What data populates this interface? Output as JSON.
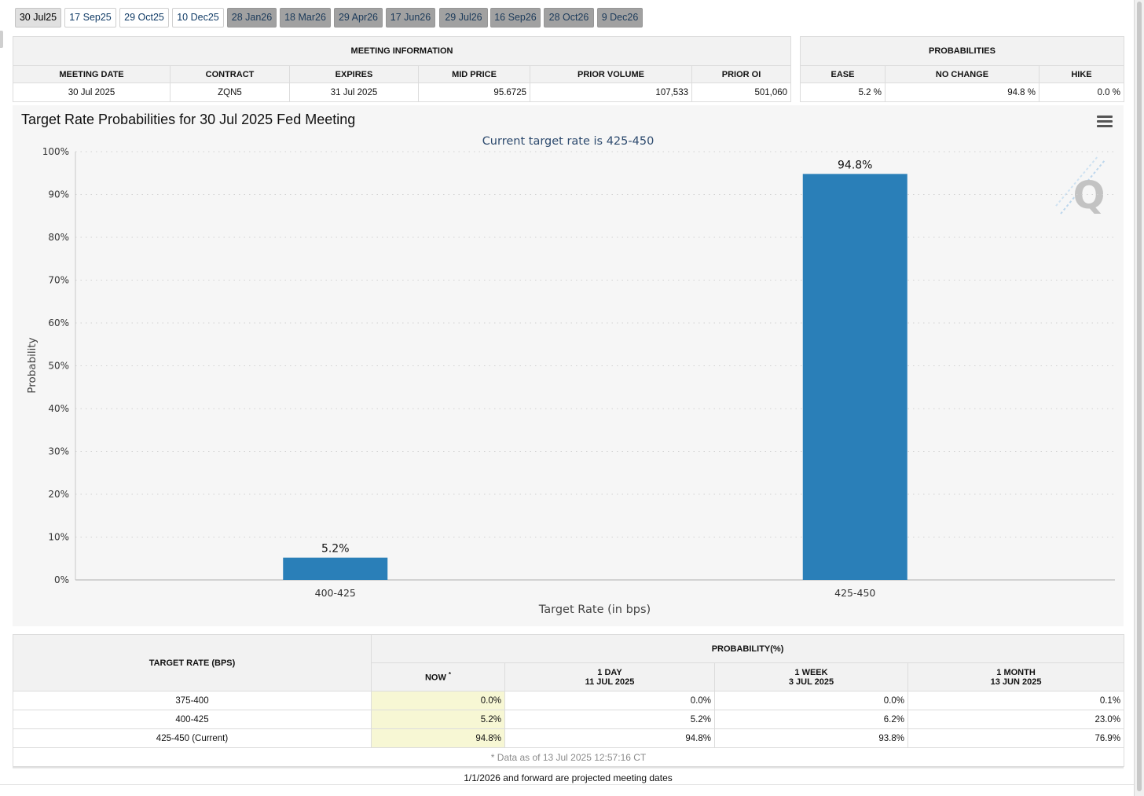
{
  "meeting_tabs": [
    {
      "label": "30 Jul25",
      "state": "active"
    },
    {
      "label": "17 Sep25",
      "state": "normal"
    },
    {
      "label": "29 Oct25",
      "state": "normal"
    },
    {
      "label": "10 Dec25",
      "state": "normal"
    },
    {
      "label": "28 Jan26",
      "state": "future"
    },
    {
      "label": "18 Mar26",
      "state": "future"
    },
    {
      "label": "29 Apr26",
      "state": "future"
    },
    {
      "label": "17 Jun26",
      "state": "future"
    },
    {
      "label": "29 Jul26",
      "state": "future"
    },
    {
      "label": "16 Sep26",
      "state": "future"
    },
    {
      "label": "28 Oct26",
      "state": "future"
    },
    {
      "label": "9 Dec26",
      "state": "future"
    }
  ],
  "meeting_info": {
    "title": "MEETING INFORMATION",
    "headers": [
      "MEETING DATE",
      "CONTRACT",
      "EXPIRES",
      "MID PRICE",
      "PRIOR VOLUME",
      "PRIOR OI"
    ],
    "values": [
      "30 Jul 2025",
      "ZQN5",
      "31 Jul 2025",
      "95.6725",
      "107,533",
      "501,060"
    ]
  },
  "probabilities": {
    "title": "PROBABILITIES",
    "headers": [
      "EASE",
      "NO CHANGE",
      "HIKE"
    ],
    "values": [
      "5.2 %",
      "94.8 %",
      "0.0 %"
    ]
  },
  "chart": {
    "menu_icon": "hamburger-menu-icon",
    "watermark_icon": "q-logo-icon",
    "bar_color": "#2a7fb8"
  },
  "chart_data": {
    "type": "bar",
    "title": "Target Rate Probabilities for 30 Jul 2025 Fed Meeting",
    "subtitle": "Current target rate is 425-450",
    "xlabel": "Target Rate (in bps)",
    "ylabel": "Probability",
    "categories": [
      "400-425",
      "425-450"
    ],
    "values": [
      5.2,
      94.8
    ],
    "data_labels": [
      "5.2%",
      "94.8%"
    ],
    "ylim": [
      0,
      100
    ],
    "yticks": [
      "0%",
      "10%",
      "20%",
      "30%",
      "40%",
      "50%",
      "60%",
      "70%",
      "80%",
      "90%",
      "100%"
    ],
    "grid": true
  },
  "prob_table": {
    "target_header": "TARGET RATE (BPS)",
    "prob_header": "PROBABILITY(%)",
    "now_label": "NOW",
    "now_mark": "*",
    "columns": [
      {
        "line1": "1 DAY",
        "line2": "11 JUL 2025"
      },
      {
        "line1": "1 WEEK",
        "line2": "3 JUL 2025"
      },
      {
        "line1": "1 MONTH",
        "line2": "13 JUN 2025"
      }
    ],
    "rows": [
      {
        "rate": "375-400",
        "now": "0.0%",
        "day": "0.0%",
        "week": "0.0%",
        "month": "0.1%"
      },
      {
        "rate": "400-425",
        "now": "5.2%",
        "day": "5.2%",
        "week": "6.2%",
        "month": "23.0%"
      },
      {
        "rate": "425-450 (Current)",
        "now": "94.8%",
        "day": "94.8%",
        "week": "93.8%",
        "month": "76.9%"
      }
    ],
    "note": "* Data as of 13 Jul 2025 12:57:16 CT"
  },
  "footer_note": "1/1/2026 and forward are projected meeting dates"
}
